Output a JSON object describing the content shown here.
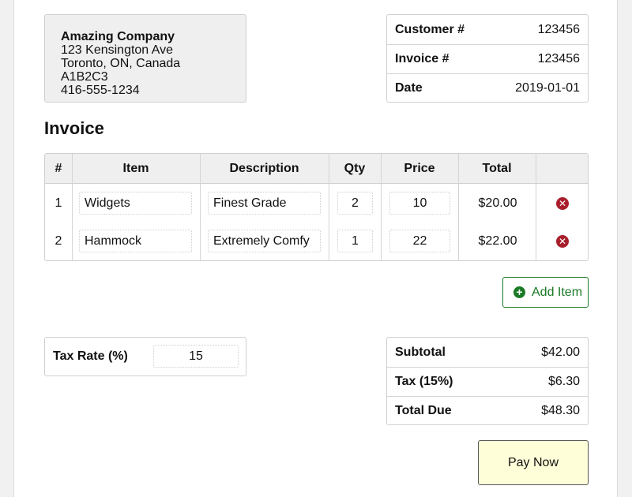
{
  "company": {
    "name": "Amazing Company",
    "address": "123 Kensington Ave",
    "city_line": "Toronto, ON, Canada  A1B2C3",
    "phone": "416-555-1234"
  },
  "meta": [
    {
      "label": "Customer #",
      "value": "123456"
    },
    {
      "label": "Invoice #",
      "value": "123456"
    },
    {
      "label": "Date",
      "value": "2019-01-01"
    }
  ],
  "heading": "Invoice",
  "items_table": {
    "headers": [
      "#",
      "Item",
      "Description",
      "Qty",
      "Price",
      "Total"
    ],
    "rows": [
      {
        "num": "1",
        "item": "Widgets",
        "description": "Finest Grade",
        "qty": "2",
        "price": "10",
        "total": "$20.00"
      },
      {
        "num": "2",
        "item": "Hammock",
        "description": "Extremely Comfy",
        "qty": "1",
        "price": "22",
        "total": "$22.00"
      }
    ],
    "delete_icon": "x-circle-icon"
  },
  "add_item": {
    "label": "Add Item",
    "icon": "plus-circle-icon"
  },
  "tax": {
    "label": "Tax Rate (%)",
    "value": "15"
  },
  "totals": [
    {
      "label": "Subtotal",
      "value": "$42.00"
    },
    {
      "label": "Tax (15%)",
      "value": "$6.30"
    },
    {
      "label": "Total Due",
      "value": "$48.30"
    }
  ],
  "pay_button": {
    "label": "Pay Now"
  },
  "colors": {
    "accent_green": "#1a7a26",
    "delete_red": "#a81f2b",
    "pay_bg": "#fefed8",
    "header_bg": "#efefef"
  }
}
